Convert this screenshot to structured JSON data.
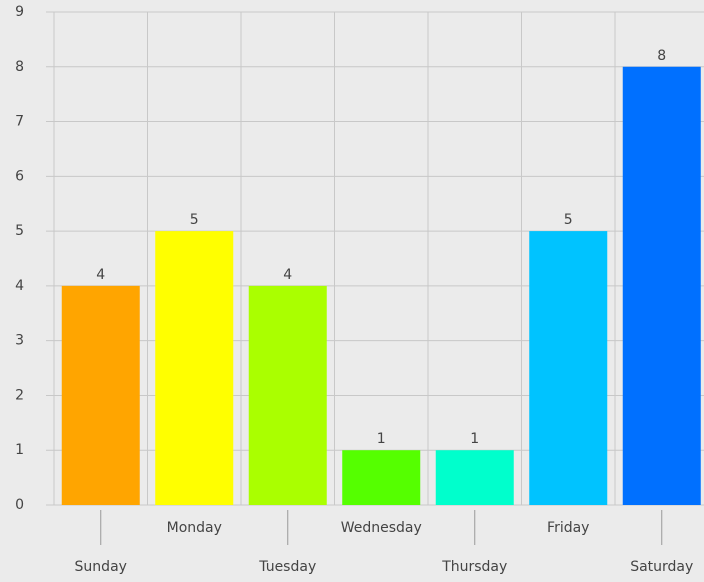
{
  "chart_data": {
    "type": "bar",
    "categories": [
      "Sunday",
      "Monday",
      "Tuesday",
      "Wednesday",
      "Thursday",
      "Friday",
      "Saturday"
    ],
    "values": [
      4,
      5,
      4,
      1,
      1,
      5,
      8
    ],
    "colors": [
      "#ffa500",
      "#ffff00",
      "#aaff00",
      "#55ff00",
      "#00ffcc",
      "#00c3ff",
      "#0070ff"
    ],
    "ylim": [
      0,
      9
    ],
    "yticks": [
      0,
      1,
      2,
      3,
      4,
      5,
      6,
      7,
      8,
      9
    ],
    "grid": true
  }
}
